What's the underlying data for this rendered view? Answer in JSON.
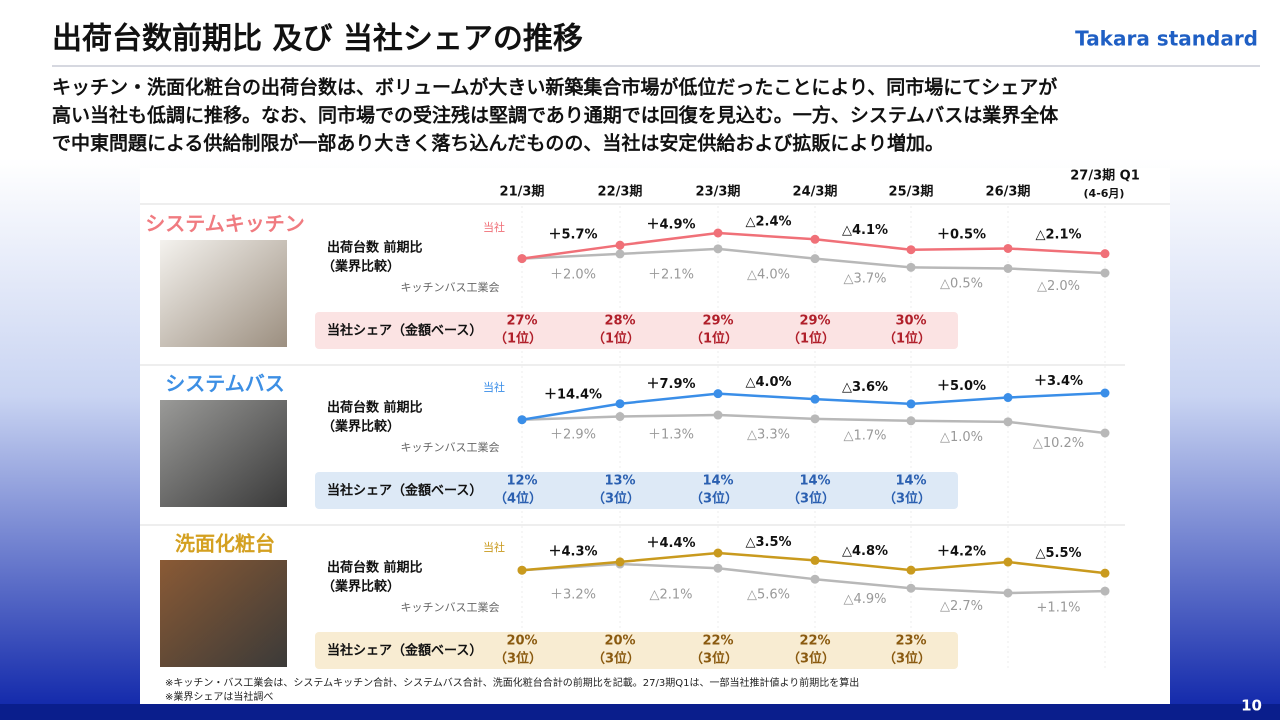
{
  "slide": {
    "title": "出荷台数前期比 及び 当社シェアの推移",
    "logo": "Takara standard",
    "lead": [
      "キッチン・洗面化粧台の出荷台数は、ボリュームが大きい新築集合市場が低位だったことにより、同市場にてシェアが",
      "高い当社も低調に推移。なお、同市場での受注残は堅調であり通期では回復を見込む。一方、システムバスは業界全体",
      "で中東問題による供給制限が一部あり大きく落ち込んだものの、当社は安定供給および拡販により増加。"
    ],
    "periods": [
      "21/3期",
      "22/3期",
      "23/3期",
      "24/3期",
      "25/3期",
      "26/3期",
      "27/3期 Q1"
    ],
    "period_note": "(4-6月)",
    "metric_label": [
      "出荷台数 前期比",
      "（業界比較）"
    ],
    "share_label": "当社シェア（金額ベース）",
    "footnotes": [
      "※キッチン・バス工業会は、システムキッチン合計、システムバス合計、洗面化粧台合計の前期比を記載。27/3期Q1は、一部当社推計値より前期比を算出",
      "※業界シェアは当社調べ"
    ],
    "page": "10"
  },
  "chart_data": [
    {
      "type": "line",
      "title": "システムキッチン",
      "title_color": "#f07b80",
      "series": [
        {
          "name": "当社",
          "color": "#f07078",
          "values": [
            5.7,
            4.9,
            -2.4,
            -4.1,
            0.5,
            -2.1
          ],
          "value_labels": [
            "＋5.7%",
            "＋4.9%",
            "△2.4%",
            "△4.1%",
            "＋0.5%",
            "△2.1%"
          ]
        },
        {
          "name": "キッチンバス工業会",
          "color": "#b8b8b8",
          "values": [
            2.0,
            2.1,
            -4.0,
            -3.7,
            -0.5,
            -2.0
          ],
          "value_labels": [
            "＋2.0%",
            "＋2.1%",
            "△4.0%",
            "△3.7%",
            "△0.5%",
            "△2.0%"
          ]
        }
      ],
      "share": {
        "values": [
          27,
          28,
          29,
          29,
          30
        ],
        "value_labels": [
          "27%",
          "28%",
          "29%",
          "29%",
          "30%"
        ],
        "ranks": [
          "（1位）",
          "（1位）",
          "（1位）",
          "（1位）",
          "（1位）"
        ],
        "color": "#b01f2a",
        "background": "#fbe3e3"
      }
    },
    {
      "type": "line",
      "title": "システムバス",
      "title_color": "#3d8fe4",
      "series": [
        {
          "name": "当社",
          "color": "#3a8ee8",
          "values": [
            14.4,
            7.9,
            -4.0,
            -3.6,
            5.0,
            3.4
          ],
          "value_labels": [
            "＋14.4%",
            "＋7.9%",
            "△4.0%",
            "△3.6%",
            "＋5.0%",
            "＋3.4%"
          ]
        },
        {
          "name": "キッチンバス工業会",
          "color": "#b8b8b8",
          "values": [
            2.9,
            1.3,
            -3.3,
            -1.7,
            -1.0,
            -10.2
          ],
          "value_labels": [
            "＋2.9%",
            "＋1.3%",
            "△3.3%",
            "△1.7%",
            "△1.0%",
            "△10.2%"
          ]
        }
      ],
      "share": {
        "values": [
          12,
          13,
          14,
          14,
          14
        ],
        "value_labels": [
          "12%",
          "13%",
          "14%",
          "14%",
          "14%"
        ],
        "ranks": [
          "（4位）",
          "（3位）",
          "（3位）",
          "（3位）",
          "（3位）"
        ],
        "color": "#2a5fb0",
        "background": "#dde9f6"
      }
    },
    {
      "type": "line",
      "title": "洗面化粧台",
      "title_color": "#d4a020",
      "series": [
        {
          "name": "当社",
          "color": "#c99a1e",
          "values": [
            4.3,
            4.4,
            -3.5,
            -4.8,
            4.2,
            -5.5
          ],
          "value_labels": [
            "＋4.3%",
            "＋4.4%",
            "△3.5%",
            "△4.8%",
            "＋4.2%",
            "△5.5%"
          ]
        },
        {
          "name": "キッチンバス工業会",
          "color": "#b8b8b8",
          "values": [
            3.2,
            -2.1,
            -5.6,
            -4.9,
            -2.7,
            1.1
          ],
          "value_labels": [
            "＋3.2%",
            "△2.1%",
            "△5.6%",
            "△4.9%",
            "△2.7%",
            "+1.1%"
          ]
        }
      ],
      "share": {
        "values": [
          20,
          20,
          22,
          22,
          23
        ],
        "value_labels": [
          "20%",
          "20%",
          "22%",
          "22%",
          "23%"
        ],
        "ranks": [
          "（3位）",
          "（3位）",
          "（3位）",
          "（3位）",
          "（3位）"
        ],
        "color": "#8a5a10",
        "background": "#f8ecd2"
      }
    }
  ]
}
